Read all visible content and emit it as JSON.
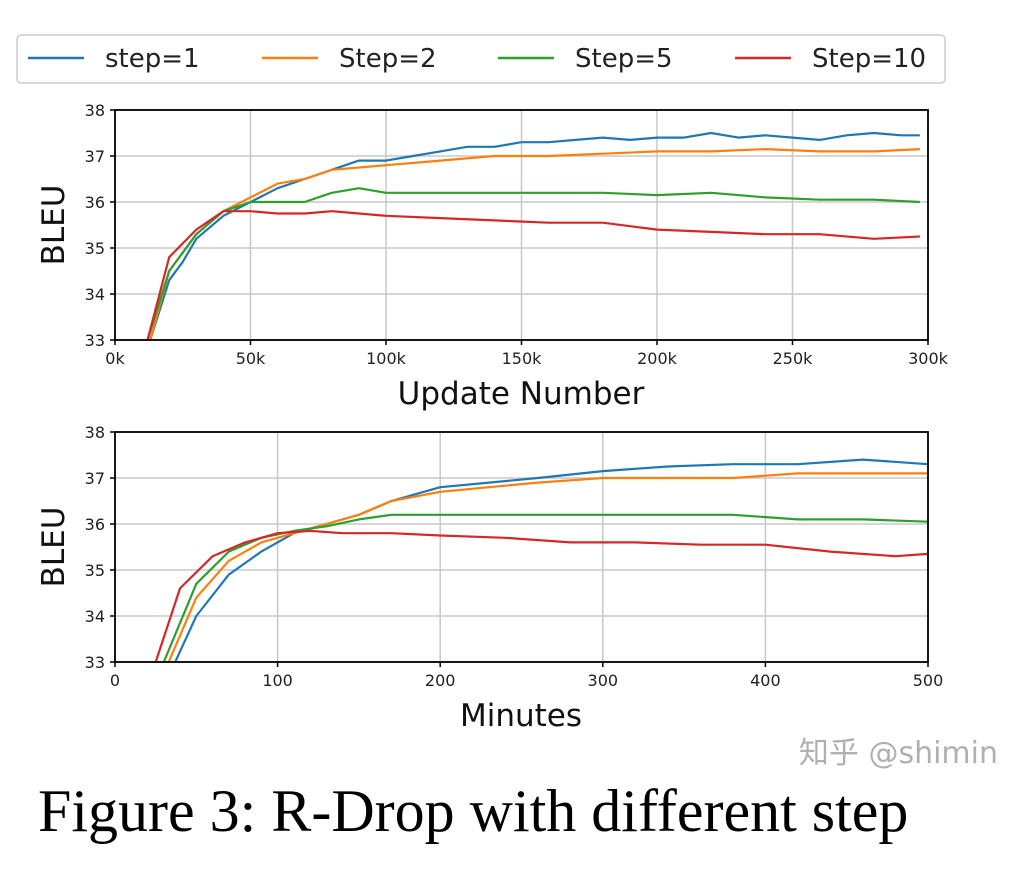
{
  "legend": {
    "placement": "top",
    "entries": [
      {
        "name": "step=1",
        "color": "#1f77b4"
      },
      {
        "name": "Step=2",
        "color": "#ff7f0e"
      },
      {
        "name": "Step=5",
        "color": "#2ca02c"
      },
      {
        "name": "Step=10",
        "color": "#d62728"
      }
    ]
  },
  "caption": "Figure 3: R-Drop with different step",
  "watermark": "知乎 @shimin",
  "chart_data": [
    {
      "type": "line",
      "xlabel": "Update Number",
      "ylabel": "BLEU",
      "xlim": [
        0,
        300000
      ],
      "ylim": [
        33,
        38
      ],
      "grid": true,
      "xticks": [
        0,
        50000,
        100000,
        150000,
        200000,
        250000,
        300000
      ],
      "xtick_labels": [
        "0k",
        "50k",
        "100k",
        "150k",
        "200k",
        "250k",
        "300k"
      ],
      "yticks": [
        33,
        34,
        35,
        36,
        37,
        38
      ],
      "ytick_labels": [
        "33",
        "34",
        "35",
        "36",
        "37",
        "38"
      ],
      "series": [
        {
          "name": "step=1",
          "x": [
            13000,
            20000,
            25000,
            30000,
            40000,
            50000,
            60000,
            70000,
            80000,
            90000,
            100000,
            110000,
            120000,
            130000,
            140000,
            150000,
            160000,
            170000,
            180000,
            190000,
            200000,
            210000,
            220000,
            230000,
            240000,
            250000,
            260000,
            270000,
            280000,
            290000,
            297000
          ],
          "y": [
            33,
            34.3,
            34.7,
            35.2,
            35.7,
            36.0,
            36.3,
            36.5,
            36.7,
            36.9,
            36.9,
            37.0,
            37.1,
            37.2,
            37.2,
            37.3,
            37.3,
            37.35,
            37.4,
            37.35,
            37.4,
            37.4,
            37.5,
            37.4,
            37.45,
            37.4,
            37.35,
            37.45,
            37.5,
            37.45,
            37.45
          ]
        },
        {
          "name": "Step=2",
          "x": [
            13000,
            20000,
            25000,
            30000,
            40000,
            50000,
            60000,
            70000,
            80000,
            90000,
            100000,
            120000,
            140000,
            160000,
            180000,
            200000,
            220000,
            240000,
            260000,
            280000,
            297000
          ],
          "y": [
            33,
            34.5,
            34.9,
            35.3,
            35.8,
            36.1,
            36.4,
            36.5,
            36.7,
            36.75,
            36.8,
            36.9,
            37.0,
            37.0,
            37.05,
            37.1,
            37.1,
            37.15,
            37.1,
            37.1,
            37.15
          ]
        },
        {
          "name": "Step=5",
          "x": [
            12000,
            20000,
            30000,
            40000,
            50000,
            60000,
            70000,
            80000,
            90000,
            100000,
            120000,
            140000,
            160000,
            180000,
            200000,
            220000,
            240000,
            260000,
            280000,
            297000
          ],
          "y": [
            33,
            34.5,
            35.3,
            35.8,
            36.0,
            36.0,
            36.0,
            36.2,
            36.3,
            36.2,
            36.2,
            36.2,
            36.2,
            36.2,
            36.15,
            36.2,
            36.1,
            36.05,
            36.05,
            36.0
          ]
        },
        {
          "name": "Step=10",
          "x": [
            12000,
            20000,
            30000,
            40000,
            50000,
            60000,
            70000,
            80000,
            90000,
            100000,
            120000,
            140000,
            160000,
            180000,
            200000,
            220000,
            240000,
            260000,
            280000,
            297000
          ],
          "y": [
            33,
            34.8,
            35.4,
            35.8,
            35.8,
            35.75,
            35.75,
            35.8,
            35.75,
            35.7,
            35.65,
            35.6,
            35.55,
            35.55,
            35.4,
            35.35,
            35.3,
            35.3,
            35.2,
            35.25
          ]
        }
      ]
    },
    {
      "type": "line",
      "xlabel": "Minutes",
      "ylabel": "BLEU",
      "xlim": [
        0,
        500
      ],
      "ylim": [
        33,
        38
      ],
      "grid": true,
      "xticks": [
        0,
        100,
        200,
        300,
        400,
        500
      ],
      "xtick_labels": [
        "0",
        "100",
        "200",
        "300",
        "400",
        "500"
      ],
      "yticks": [
        33,
        34,
        35,
        36,
        37,
        38
      ],
      "ytick_labels": [
        "33",
        "34",
        "35",
        "36",
        "37",
        "38"
      ],
      "series": [
        {
          "name": "step=1",
          "x": [
            37,
            50,
            70,
            90,
            110,
            130,
            150,
            170,
            200,
            230,
            260,
            300,
            340,
            380,
            420,
            460,
            500
          ],
          "y": [
            33,
            34.0,
            34.9,
            35.4,
            35.8,
            36.0,
            36.2,
            36.5,
            36.8,
            36.9,
            37.0,
            37.15,
            37.25,
            37.3,
            37.3,
            37.4,
            37.3
          ]
        },
        {
          "name": "Step=2",
          "x": [
            33,
            50,
            70,
            90,
            110,
            130,
            150,
            170,
            200,
            230,
            260,
            300,
            340,
            380,
            420,
            460,
            500
          ],
          "y": [
            33,
            34.4,
            35.2,
            35.6,
            35.8,
            36.0,
            36.2,
            36.5,
            36.7,
            36.8,
            36.9,
            37.0,
            37.0,
            37.0,
            37.1,
            37.1,
            37.1
          ]
        },
        {
          "name": "Step=5",
          "x": [
            30,
            50,
            70,
            90,
            110,
            130,
            150,
            170,
            200,
            230,
            260,
            300,
            340,
            380,
            420,
            460,
            500
          ],
          "y": [
            33,
            34.7,
            35.4,
            35.7,
            35.85,
            35.95,
            36.1,
            36.2,
            36.2,
            36.2,
            36.2,
            36.2,
            36.2,
            36.2,
            36.1,
            36.1,
            36.05
          ]
        },
        {
          "name": "Step=10",
          "x": [
            25,
            40,
            60,
            80,
            100,
            120,
            140,
            170,
            200,
            240,
            280,
            320,
            360,
            400,
            440,
            480,
            500
          ],
          "y": [
            33,
            34.6,
            35.3,
            35.6,
            35.8,
            35.85,
            35.8,
            35.8,
            35.75,
            35.7,
            35.6,
            35.6,
            35.55,
            35.55,
            35.4,
            35.3,
            35.35
          ]
        }
      ]
    }
  ]
}
